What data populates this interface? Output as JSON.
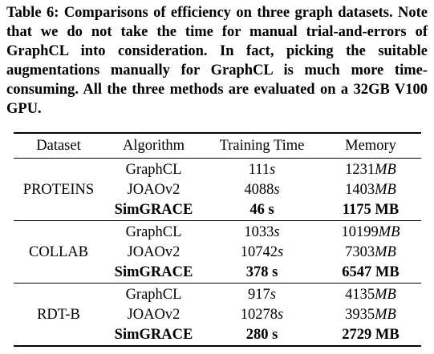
{
  "caption": {
    "label": "Table 6:",
    "text": "Comparisons of efficiency on three graph datasets. Note that we do not take the time for manual trial-and-errors of GraphCL into consideration. In fact, picking the suitable augmentations manually for GraphCL is much more time-consuming. All the three methods are evaluated on a 32GB V100 GPU."
  },
  "table": {
    "headers": [
      "Dataset",
      "Algorithm",
      "Training Time",
      "Memory"
    ],
    "groups": [
      {
        "dataset": "PROTEINS",
        "rows": [
          {
            "algorithm": "GraphCL",
            "time_value": "111",
            "time_unit": "s",
            "memory_value": "1231",
            "memory_unit": "MB"
          },
          {
            "algorithm": "JOAOv2",
            "time_value": "4088",
            "time_unit": "s",
            "memory_value": "1403",
            "memory_unit": "MB"
          },
          {
            "algorithm": "SimGRACE",
            "time_value": "46 s",
            "memory_value": "1175 MB"
          }
        ]
      },
      {
        "dataset": "COLLAB",
        "rows": [
          {
            "algorithm": "GraphCL",
            "time_value": "1033",
            "time_unit": "s",
            "memory_value": "10199",
            "memory_unit": "MB"
          },
          {
            "algorithm": "JOAOv2",
            "time_value": "10742",
            "time_unit": "s",
            "memory_value": "7303",
            "memory_unit": "MB"
          },
          {
            "algorithm": "SimGRACE",
            "time_value": "378 s",
            "memory_value": "6547 MB"
          }
        ]
      },
      {
        "dataset": "RDT-B",
        "rows": [
          {
            "algorithm": "GraphCL",
            "time_value": "917",
            "time_unit": "s",
            "memory_value": "4135",
            "memory_unit": "MB"
          },
          {
            "algorithm": "JOAOv2",
            "time_value": "10278",
            "time_unit": "s",
            "memory_value": "3935",
            "memory_unit": "MB"
          },
          {
            "algorithm": "SimGRACE",
            "time_value": "280 s",
            "memory_value": "2729 MB"
          }
        ]
      }
    ]
  }
}
